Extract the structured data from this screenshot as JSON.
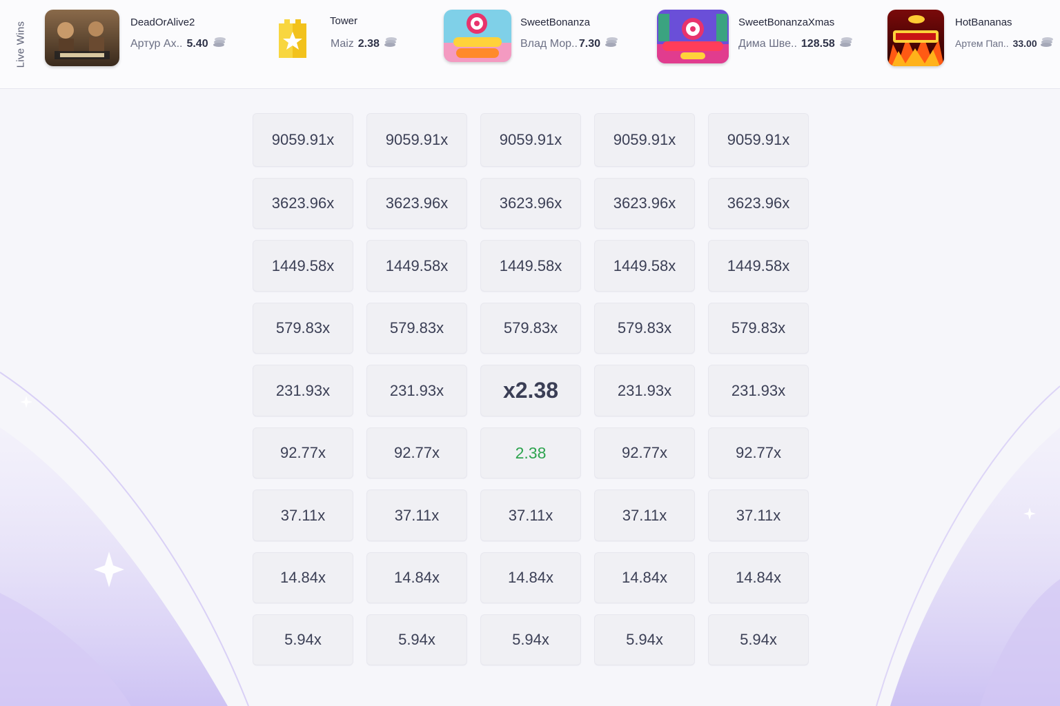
{
  "live_wins": {
    "label": "Live Wins",
    "items": [
      {
        "game": "DeadOrAlive2",
        "player": "Артур Ах..",
        "amount": "5.40",
        "thumb_icon": "dead-or-alive-thumbnail"
      },
      {
        "game": "Tower",
        "player": "Maiz",
        "amount": "2.38",
        "thumb_icon": "tower-star-thumbnail"
      },
      {
        "game": "SweetBonanza",
        "player": "Влад Мор..",
        "amount": "7.30",
        "thumb_icon": "sweet-bonanza-thumbnail"
      },
      {
        "game": "SweetBonanzaXmas",
        "player": "Дима Шве..",
        "amount": "128.58",
        "thumb_icon": "sweet-bonanza-xmas-thumbnail"
      },
      {
        "game": "HotBananas",
        "player": "Артем Пап..",
        "amount": "33.00",
        "thumb_icon": "hot-bananas-thumbnail"
      }
    ],
    "coin_icon": "coin-stack-icon"
  },
  "grid": {
    "rows": [
      [
        "9059.91x",
        "9059.91x",
        "9059.91x",
        "9059.91x",
        "9059.91x"
      ],
      [
        "3623.96x",
        "3623.96x",
        "3623.96x",
        "3623.96x",
        "3623.96x"
      ],
      [
        "1449.58x",
        "1449.58x",
        "1449.58x",
        "1449.58x",
        "1449.58x"
      ],
      [
        "579.83x",
        "579.83x",
        "579.83x",
        "579.83x",
        "579.83x"
      ],
      [
        "231.93x",
        "231.93x",
        "x2.38",
        "231.93x",
        "231.93x"
      ],
      [
        "92.77x",
        "92.77x",
        "2.38",
        "92.77x",
        "92.77x"
      ],
      [
        "37.11x",
        "37.11x",
        "37.11x",
        "37.11x",
        "37.11x"
      ],
      [
        "14.84x",
        "14.84x",
        "14.84x",
        "14.84x",
        "14.84x"
      ],
      [
        "5.94x",
        "5.94x",
        "5.94x",
        "5.94x",
        "5.94x"
      ]
    ],
    "current_cell": {
      "row": 4,
      "col": 2
    },
    "win_cell": {
      "row": 5,
      "col": 2
    },
    "win_color": "#2ea44f",
    "accent_color": "#c9b8f2"
  }
}
